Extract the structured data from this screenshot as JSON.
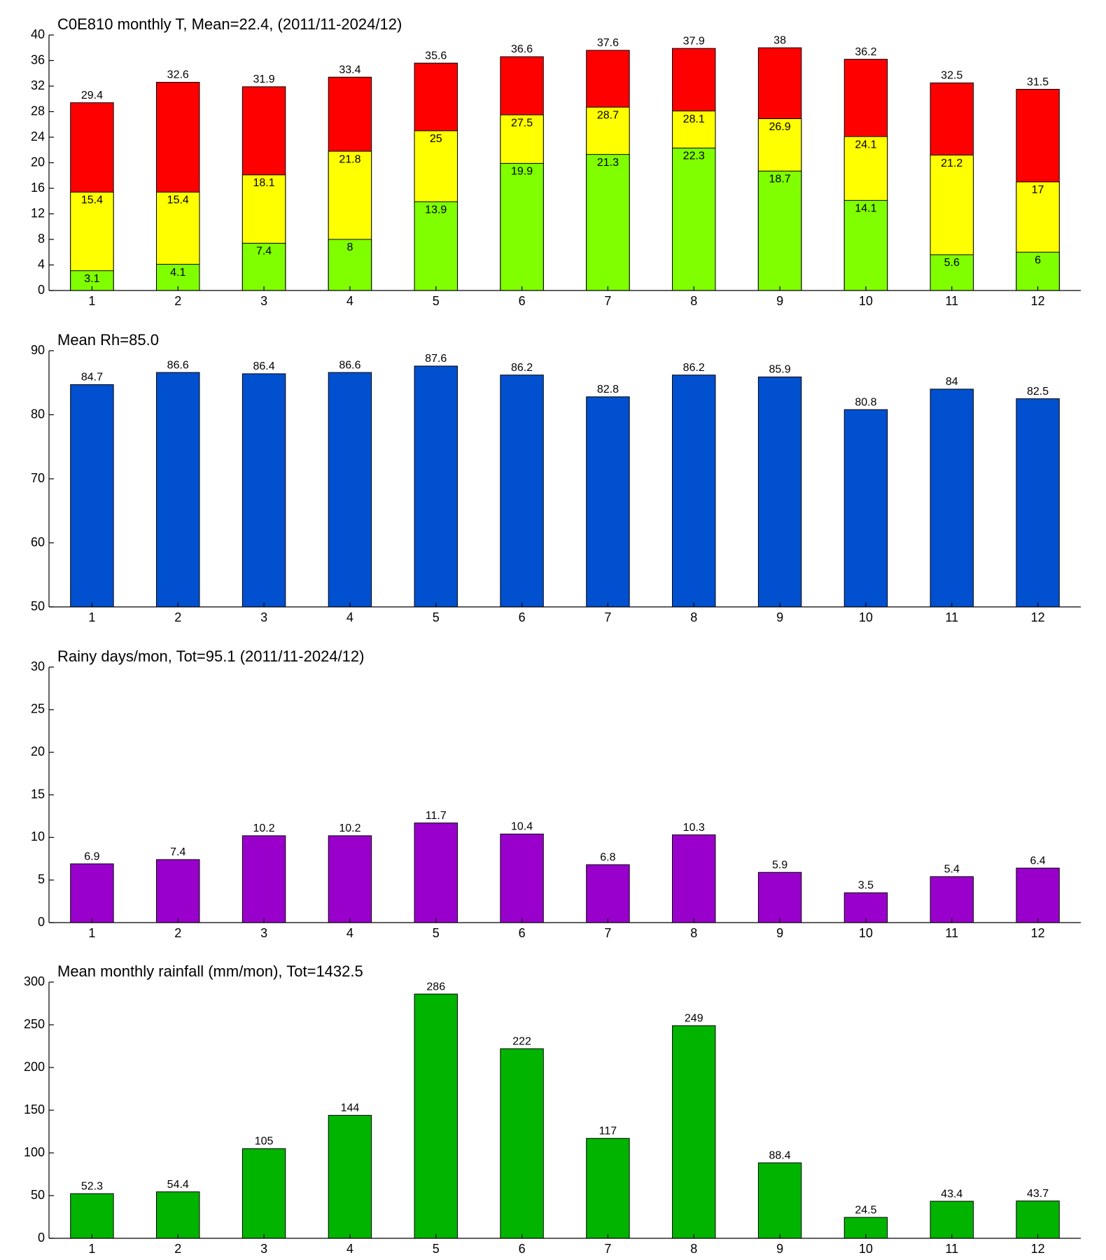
{
  "chart_data": [
    {
      "type": "bar",
      "title": "C0E810 monthly T, Mean=22.4, (2011/11-2024/12)",
      "barmode": "overlay",
      "categories": [
        "1",
        "2",
        "3",
        "4",
        "5",
        "6",
        "7",
        "8",
        "9",
        "10",
        "11",
        "12"
      ],
      "series": [
        {
          "color": "#ff0000",
          "values": [
            29.4,
            32.6,
            31.9,
            33.4,
            35.6,
            36.6,
            37.6,
            37.9,
            38,
            36.2,
            32.5,
            31.5
          ]
        },
        {
          "color": "#ffff00",
          "values": [
            15.4,
            15.4,
            18.1,
            21.8,
            25,
            27.5,
            28.7,
            28.1,
            26.9,
            24.1,
            21.2,
            17
          ]
        },
        {
          "color": "#80ff00",
          "values": [
            3.1,
            4.1,
            7.4,
            8,
            13.9,
            19.9,
            21.3,
            22.3,
            18.7,
            14.1,
            5.6,
            6
          ]
        }
      ],
      "ylim": [
        0,
        40
      ],
      "yticks": [
        0,
        4,
        8,
        12,
        16,
        20,
        24,
        28,
        32,
        36,
        40
      ]
    },
    {
      "type": "bar",
      "title": "Mean Rh=85.0",
      "categories": [
        "1",
        "2",
        "3",
        "4",
        "5",
        "6",
        "7",
        "8",
        "9",
        "10",
        "11",
        "12"
      ],
      "values": [
        84.7,
        86.6,
        86.4,
        86.6,
        87.6,
        86.2,
        82.8,
        86.2,
        85.9,
        80.8,
        84,
        82.5
      ],
      "color": "#0050d0",
      "ylim": [
        50,
        90
      ],
      "yticks": [
        50,
        60,
        70,
        80,
        90
      ]
    },
    {
      "type": "bar",
      "title": "Rainy days/mon, Tot=95.1 (2011/11-2024/12)",
      "categories": [
        "1",
        "2",
        "3",
        "4",
        "5",
        "6",
        "7",
        "8",
        "9",
        "10",
        "11",
        "12"
      ],
      "values": [
        6.9,
        7.4,
        10.2,
        10.2,
        11.7,
        10.4,
        6.8,
        10.3,
        5.9,
        3.5,
        5.4,
        6.4
      ],
      "color": "#9900cc",
      "ylim": [
        0,
        30
      ],
      "yticks": [
        0,
        5,
        10,
        15,
        20,
        25,
        30
      ]
    },
    {
      "type": "bar",
      "title": "Mean monthly rainfall (mm/mon), Tot=1432.5",
      "categories": [
        "1",
        "2",
        "3",
        "4",
        "5",
        "6",
        "7",
        "8",
        "9",
        "10",
        "11",
        "12"
      ],
      "values": [
        52.3,
        54.4,
        105,
        144,
        286,
        222,
        117,
        249,
        88.4,
        24.5,
        43.4,
        43.7
      ],
      "color": "#00b400",
      "ylim": [
        0,
        300
      ],
      "yticks": [
        0,
        50,
        100,
        150,
        200,
        250,
        300
      ]
    }
  ]
}
